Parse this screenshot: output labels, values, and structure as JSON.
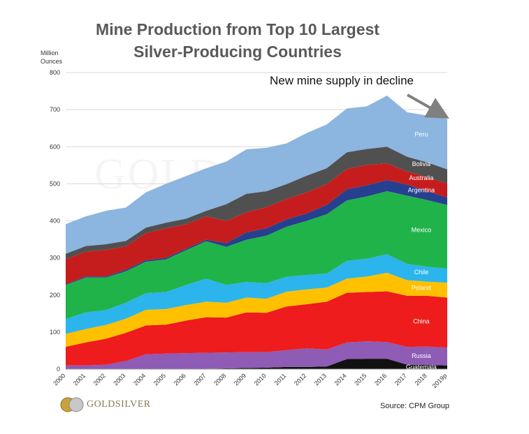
{
  "title_line1": "Mine Production from Top 10 Largest",
  "title_line2": "Silver-Producing  Countries",
  "ylabel_line1": "Million",
  "ylabel_line2": "Ounces",
  "annotation": "New mine supply in decline",
  "source": "Source: CPM Group",
  "logo_text": "GOLDSILVER",
  "watermark": "GOLDSILVER",
  "chart_data": {
    "type": "area",
    "stacked": true,
    "title": "Mine Production from Top 10 Largest Silver-Producing  Countries",
    "ylabel": "Million Ounces",
    "ylim": [
      0,
      800
    ],
    "yticks": [
      0,
      100,
      200,
      300,
      400,
      500,
      600,
      700,
      800
    ],
    "grid": true,
    "x": [
      "2000",
      "2001",
      "2002",
      "2003",
      "2004",
      "2005",
      "2006",
      "2007",
      "2008",
      "2009",
      "2010",
      "2011",
      "2012",
      "2013",
      "2014",
      "2015",
      "2016",
      "2017",
      "2018",
      "2019p"
    ],
    "series": [
      {
        "name": "Guatemala",
        "color": "#111111",
        "values": [
          0,
          0,
          0,
          0,
          0,
          0,
          1,
          1,
          2,
          3,
          4,
          6,
          6,
          7,
          27,
          28,
          28,
          12,
          11,
          10
        ]
      },
      {
        "name": "Russia",
        "color": "#8e5bb5",
        "values": [
          10,
          10,
          12,
          22,
          40,
          42,
          42,
          43,
          43,
          43,
          42,
          45,
          50,
          46,
          45,
          47,
          45,
          48,
          50,
          48
        ]
      },
      {
        "name": "China",
        "color": "#ee1c1c",
        "values": [
          50,
          62,
          70,
          76,
          78,
          78,
          88,
          96,
          94,
          107,
          106,
          118,
          119,
          129,
          134,
          133,
          137,
          138,
          137,
          135
        ]
      },
      {
        "name": "Poland",
        "color": "#ffc000",
        "values": [
          35,
          36,
          37,
          38,
          42,
          42,
          42,
          42,
          40,
          40,
          38,
          40,
          40,
          38,
          38,
          42,
          50,
          42,
          38,
          40
        ]
      },
      {
        "name": "Chile",
        "color": "#2bb5ec",
        "values": [
          40,
          45,
          40,
          43,
          45,
          46,
          54,
          62,
          48,
          42,
          42,
          40,
          39,
          38,
          48,
          48,
          50,
          44,
          40,
          38
        ]
      },
      {
        "name": "Mexico",
        "color": "#20b34a",
        "values": [
          92,
          94,
          88,
          85,
          85,
          88,
          94,
          101,
          103,
          114,
          128,
          135,
          146,
          160,
          163,
          168,
          170,
          184,
          180,
          172
        ]
      },
      {
        "name": "Argentina",
        "color": "#26408f",
        "values": [
          2,
          3,
          3,
          4,
          4,
          4,
          4,
          4,
          10,
          20,
          20,
          20,
          20,
          25,
          30,
          30,
          30,
          30,
          24,
          20
        ]
      },
      {
        "name": "Australia",
        "color": "#c51d1d",
        "values": [
          68,
          67,
          72,
          63,
          73,
          80,
          66,
          63,
          60,
          54,
          57,
          55,
          57,
          56,
          55,
          55,
          45,
          35,
          38,
          38
        ]
      },
      {
        "name": "Bolivia",
        "color": "#505050",
        "values": [
          14,
          15,
          15,
          15,
          15,
          15,
          15,
          15,
          45,
          50,
          43,
          40,
          45,
          43,
          45,
          43,
          45,
          40,
          40,
          38
        ]
      },
      {
        "name": "Peru",
        "color": "#8cb5df",
        "values": [
          80,
          80,
          90,
          90,
          95,
          105,
          115,
          115,
          115,
          120,
          117,
          110,
          115,
          118,
          118,
          115,
          138,
          120,
          126,
          136
        ]
      }
    ],
    "annotation": {
      "text": "New mine supply in decline",
      "arrow": "pointing to 2019p"
    }
  }
}
